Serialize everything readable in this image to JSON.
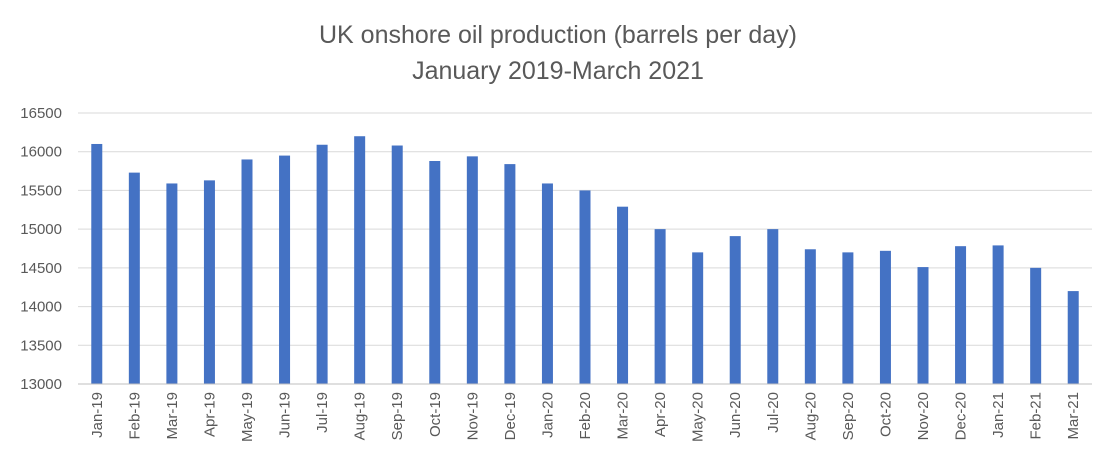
{
  "chart_data": {
    "type": "bar",
    "title": "UK onshore oil production (barrels per day)",
    "subtitle": "January 2019-March 2021",
    "xlabel": "",
    "ylabel": "",
    "ylim": [
      13000,
      16500
    ],
    "yticks": [
      13000,
      13500,
      14000,
      14500,
      15000,
      15500,
      16000,
      16500
    ],
    "grid": true,
    "bar_color": "#4472C4",
    "grid_color": "#d9d9d9",
    "categories": [
      "Jan-19",
      "Feb-19",
      "Mar-19",
      "Apr-19",
      "May-19",
      "Jun-19",
      "Jul-19",
      "Aug-19",
      "Sep-19",
      "Oct-19",
      "Nov-19",
      "Dec-19",
      "Jan-20",
      "Feb-20",
      "Mar-20",
      "Apr-20",
      "May-20",
      "Jun-20",
      "Jul-20",
      "Aug-20",
      "Sep-20",
      "Oct-20",
      "Nov-20",
      "Dec-20",
      "Jan-21",
      "Feb-21",
      "Mar-21"
    ],
    "values": [
      16100,
      15730,
      15590,
      15630,
      15900,
      15950,
      16090,
      16200,
      16080,
      15880,
      15940,
      15840,
      15590,
      15500,
      15290,
      15000,
      14700,
      14910,
      15000,
      14740,
      14700,
      14720,
      14510,
      14780,
      14790,
      14500,
      14200
    ]
  }
}
